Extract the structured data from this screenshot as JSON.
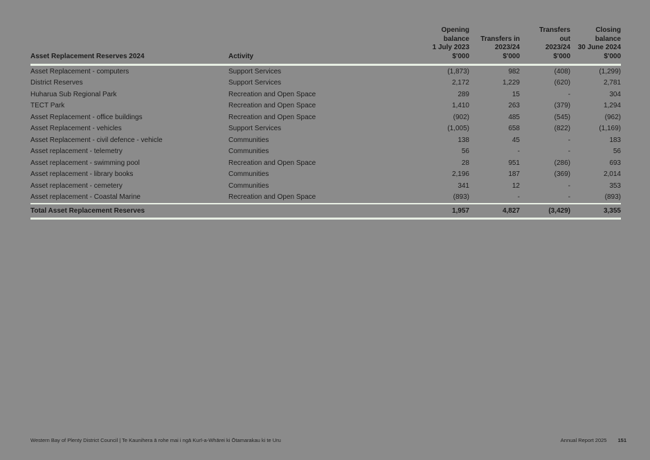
{
  "page": {
    "background_color": "#8b8b8b",
    "text_color": "#1b1b1b",
    "rule_color": "#e7eee3"
  },
  "table": {
    "columns": {
      "reserve": "Asset Replacement Reserves 2024",
      "activity": "Activity",
      "opening": "Opening\nbalance\n1 July 2023\n$'000",
      "transfers_in": "Transfers in\n2023/24\n$'000",
      "transfers_out": "Transfers\nout\n2023/24\n$'000",
      "closing": "Closing\nbalance\n30 June 2024\n$'000"
    },
    "rows": [
      {
        "name": "Asset Replacement - computers",
        "activity": "Support Services",
        "opening": "(1,873)",
        "transfers_in": "982",
        "transfers_out": "(408)",
        "closing": "(1,299)"
      },
      {
        "name": "District Reserves",
        "activity": "Support Services",
        "opening": "2,172",
        "transfers_in": "1,229",
        "transfers_out": "(620)",
        "closing": "2,781"
      },
      {
        "name": "Huharua Sub Regional Park",
        "activity": "Recreation and Open Space",
        "opening": "289",
        "transfers_in": "15",
        "transfers_out": "-",
        "closing": "304"
      },
      {
        "name": "TECT Park",
        "activity": "Recreation and Open Space",
        "opening": "1,410",
        "transfers_in": "263",
        "transfers_out": "(379)",
        "closing": "1,294"
      },
      {
        "name": "Asset Replacement - office buildings",
        "activity": "Recreation and Open Space",
        "opening": "(902)",
        "transfers_in": "485",
        "transfers_out": "(545)",
        "closing": "(962)"
      },
      {
        "name": "Asset Replacement - vehicles",
        "activity": "Support Services",
        "opening": "(1,005)",
        "transfers_in": "658",
        "transfers_out": "(822)",
        "closing": "(1,169)"
      },
      {
        "name": "Asset Replacement - civil defence - vehicle",
        "activity": "Communities",
        "opening": "138",
        "transfers_in": "45",
        "transfers_out": "-",
        "closing": "183"
      },
      {
        "name": "Asset replacement - telemetry",
        "activity": "Communities",
        "opening": "56",
        "transfers_in": "-",
        "transfers_out": "-",
        "closing": "56"
      },
      {
        "name": "Asset replacement - swimming pool",
        "activity": "Recreation and Open Space",
        "opening": "28",
        "transfers_in": "951",
        "transfers_out": "(286)",
        "closing": "693"
      },
      {
        "name": "Asset replacement - library books",
        "activity": "Communities",
        "opening": "2,196",
        "transfers_in": "187",
        "transfers_out": "(369)",
        "closing": "2,014"
      },
      {
        "name": "Asset replacement - cemetery",
        "activity": "Communities",
        "opening": "341",
        "transfers_in": "12",
        "transfers_out": "-",
        "closing": "353"
      },
      {
        "name": "Asset replacement - Coastal Marine",
        "activity": "Recreation and Open Space",
        "opening": "(893)",
        "transfers_in": "-",
        "transfers_out": "-",
        "closing": "(893)"
      }
    ],
    "total_row": {
      "label": "Total Asset Replacement Reserves",
      "opening": "1,957",
      "transfers_in": "4,827",
      "transfers_out": "(3,429)",
      "closing": "3,355"
    }
  },
  "footer": {
    "left": "Western Bay of Plenty District Council | Te Kaunihera ā rohe mai i ngā Kurī-a-Whārei ki Ōtamarakau ki te Uru",
    "report_title": "Annual Report 2025",
    "page_number": "151"
  }
}
